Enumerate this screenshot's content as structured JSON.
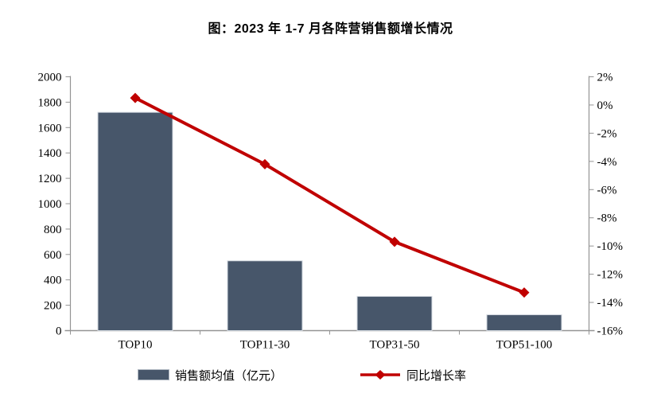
{
  "title_prefix": "图：",
  "chart_data": {
    "type": "combo",
    "title": "图：2023 年 1-7 月各阵营销售额增长情况",
    "categories": [
      "TOP10",
      "TOP11-30",
      "TOP31-50",
      "TOP51-100"
    ],
    "series": [
      {
        "name": "销售额均值（亿元）",
        "type": "bar",
        "axis": "left",
        "color": "#47566a",
        "values": [
          1720,
          550,
          270,
          125
        ]
      },
      {
        "name": "同比增长率",
        "type": "line",
        "axis": "right",
        "color": "#c00000",
        "marker": "diamond",
        "values": [
          0.5,
          -4.2,
          -9.7,
          -13.3
        ]
      }
    ],
    "left_axis": {
      "min": 0,
      "max": 2000,
      "step": 200,
      "tick_labels": [
        "2000",
        "1800",
        "1600",
        "1400",
        "1200",
        "1000",
        "800",
        "600",
        "400",
        "200",
        "0"
      ]
    },
    "right_axis": {
      "min": -16,
      "max": 2,
      "step": 2,
      "unit": "%",
      "tick_labels": [
        "2%",
        "0%",
        "-2%",
        "-4%",
        "-6%",
        "-8%",
        "-10%",
        "-12%",
        "-14%",
        "-16%"
      ]
    },
    "grid": false,
    "legend_position": "bottom",
    "axis_color": "#949494",
    "text_color": "#000000",
    "background": "#ffffff"
  }
}
